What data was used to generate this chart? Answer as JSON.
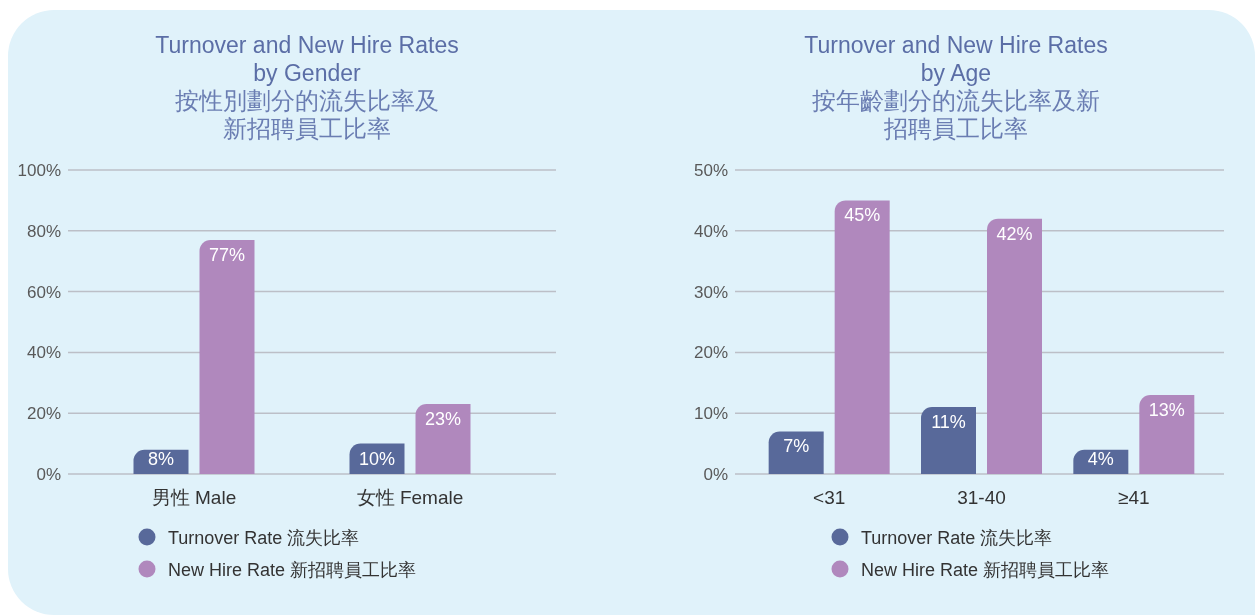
{
  "chart_data": [
    {
      "type": "bar",
      "title": "Turnover and New Hire Rates by Gender",
      "subtitle": "按性別劃分的流失比率及新招聘員工比率",
      "categories": [
        "男性 Male",
        "女性 Female"
      ],
      "series": [
        {
          "name": "Turnover Rate 流失比率",
          "color": "#58699a",
          "values": [
            8,
            10
          ],
          "value_labels": [
            "8%",
            "10%"
          ]
        },
        {
          "name": "New Hire Rate 新招聘員工比率",
          "color": "#b088bd",
          "values": [
            77,
            23
          ],
          "value_labels": [
            "77%",
            "23%"
          ]
        }
      ],
      "ylim": [
        0,
        100
      ],
      "yticks": [
        {
          "value": 0,
          "label": "0%"
        },
        {
          "value": 20,
          "label": "20%"
        },
        {
          "value": 40,
          "label": "40%"
        },
        {
          "value": 60,
          "label": "60%"
        },
        {
          "value": 80,
          "label": "80%"
        },
        {
          "value": 100,
          "label": "100%"
        }
      ],
      "grid": "y",
      "legend": "bottom"
    },
    {
      "type": "bar",
      "title": "Turnover and New Hire Rates by Age",
      "subtitle": "按年齡劃分的流失比率及新招聘員工比率",
      "categories": [
        "<31",
        "31-40",
        "≥41"
      ],
      "series": [
        {
          "name": "Turnover Rate 流失比率",
          "color": "#58699a",
          "values": [
            7,
            11,
            4
          ],
          "value_labels": [
            "7%",
            "11%",
            "4%"
          ]
        },
        {
          "name": "New Hire Rate 新招聘員工比率",
          "color": "#b088bd",
          "values": [
            45,
            42,
            13
          ],
          "value_labels": [
            "45%",
            "42%",
            "13%"
          ]
        }
      ],
      "ylim": [
        0,
        50
      ],
      "yticks": [
        {
          "value": 0,
          "label": "0%"
        },
        {
          "value": 10,
          "label": "10%"
        },
        {
          "value": 20,
          "label": "20%"
        },
        {
          "value": 30,
          "label": "30%"
        },
        {
          "value": 40,
          "label": "40%"
        },
        {
          "value": 50,
          "label": "50%"
        }
      ],
      "grid": "y",
      "legend": "bottom"
    }
  ]
}
